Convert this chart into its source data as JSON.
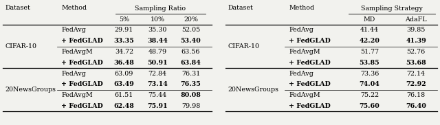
{
  "left_table": {
    "title": "Sampling Ratio",
    "col_headers": [
      "5%",
      "10%",
      "20%"
    ],
    "sections": [
      {
        "dataset": "CIFAR-10",
        "rows": [
          {
            "method": "FedAvg",
            "values": [
              "29.91",
              "35.30",
              "52.05"
            ],
            "bold": [
              false,
              false,
              false,
              false
            ]
          },
          {
            "method": "+ FedGLAD",
            "values": [
              "33.35",
              "38.44",
              "53.40"
            ],
            "bold": [
              true,
              true,
              true,
              true
            ]
          },
          {
            "method": "FedAvgM",
            "values": [
              "34.72",
              "48.79",
              "63.56"
            ],
            "bold": [
              false,
              false,
              false,
              false
            ]
          },
          {
            "method": "+ FedGLAD",
            "values": [
              "36.48",
              "50.91",
              "63.84"
            ],
            "bold": [
              true,
              true,
              true,
              true
            ]
          }
        ]
      },
      {
        "dataset": "20NewsGroups",
        "rows": [
          {
            "method": "FedAvg",
            "values": [
              "63.09",
              "72.84",
              "76.31"
            ],
            "bold": [
              false,
              false,
              false,
              false
            ]
          },
          {
            "method": "+ FedGLAD",
            "values": [
              "63.49",
              "73.14",
              "76.35"
            ],
            "bold": [
              true,
              true,
              true,
              true
            ]
          },
          {
            "method": "FedAvgM",
            "values": [
              "61.51",
              "75.44",
              "80.08"
            ],
            "bold": [
              false,
              false,
              false,
              true
            ]
          },
          {
            "method": "+ FedGLAD",
            "values": [
              "62.48",
              "75.91",
              "79.98"
            ],
            "bold": [
              true,
              true,
              true,
              false
            ]
          }
        ]
      }
    ]
  },
  "right_table": {
    "title": "Sampling Strategy",
    "col_headers": [
      "MD",
      "AdaFL"
    ],
    "sections": [
      {
        "dataset": "CIFAR-10",
        "rows": [
          {
            "method": "FedAvg",
            "values": [
              "41.44",
              "39.85"
            ],
            "bold": [
              false,
              false,
              false
            ]
          },
          {
            "method": "+ FedGLAD",
            "values": [
              "42.20",
              "41.39"
            ],
            "bold": [
              true,
              true,
              true
            ]
          },
          {
            "method": "FedAvgM",
            "values": [
              "51.77",
              "52.76"
            ],
            "bold": [
              false,
              false,
              false
            ]
          },
          {
            "method": "+ FedGLAD",
            "values": [
              "53.85",
              "53.68"
            ],
            "bold": [
              true,
              true,
              true
            ]
          }
        ]
      },
      {
        "dataset": "20NewsGroups",
        "rows": [
          {
            "method": "FedAvg",
            "values": [
              "73.36",
              "72.14"
            ],
            "bold": [
              false,
              false,
              false
            ]
          },
          {
            "method": "+ FedGLAD",
            "values": [
              "74.04",
              "72.92"
            ],
            "bold": [
              true,
              true,
              true
            ]
          },
          {
            "method": "FedAvgM",
            "values": [
              "75.22",
              "76.18"
            ],
            "bold": [
              false,
              false,
              false
            ]
          },
          {
            "method": "+ FedGLAD",
            "values": [
              "75.60",
              "76.40"
            ],
            "bold": [
              true,
              true,
              true
            ]
          }
        ]
      }
    ]
  },
  "bg_color": "#f2f2ee",
  "font_size": 6.8
}
